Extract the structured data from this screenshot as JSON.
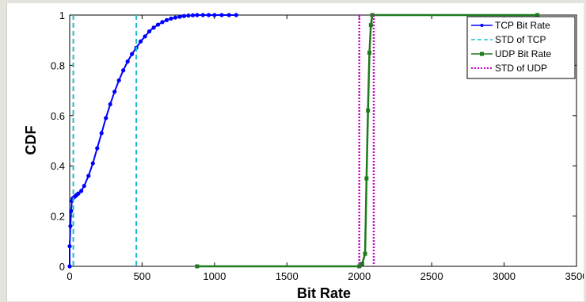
{
  "chart_data": {
    "type": "line",
    "xlabel": "Bit Rate",
    "ylabel": "CDF",
    "xlim": [
      0,
      3500
    ],
    "ylim": [
      0,
      1
    ],
    "x_ticks": [
      "0",
      "500",
      "1000",
      "1500",
      "2000",
      "2500",
      "3000",
      "3500"
    ],
    "y_ticks": [
      "0",
      "0.2",
      "0.4",
      "0.6",
      "0.8",
      "1"
    ],
    "grid": false,
    "legend_position": "top-right",
    "series": [
      {
        "name": "TCP Bit Rate",
        "color": "#0000ff",
        "style": "solid-with-point-markers",
        "x": [
          0,
          0,
          5,
          10,
          15,
          20,
          30,
          40,
          50,
          60,
          80,
          100,
          130,
          160,
          190,
          220,
          250,
          280,
          310,
          340,
          370,
          400,
          430,
          460,
          490,
          520,
          550,
          580,
          610,
          640,
          670,
          700,
          730,
          760,
          790,
          820,
          850,
          880,
          920,
          960,
          1000,
          1050,
          1100,
          1150
        ],
        "y": [
          0,
          0.08,
          0.16,
          0.22,
          0.26,
          0.27,
          0.275,
          0.28,
          0.285,
          0.29,
          0.3,
          0.32,
          0.36,
          0.41,
          0.47,
          0.53,
          0.59,
          0.645,
          0.695,
          0.74,
          0.78,
          0.815,
          0.845,
          0.87,
          0.895,
          0.915,
          0.935,
          0.95,
          0.962,
          0.972,
          0.98,
          0.986,
          0.99,
          0.993,
          0.996,
          0.998,
          0.999,
          1.0,
          1.0,
          1.0,
          1.0,
          1.0,
          1.0,
          1.0
        ]
      },
      {
        "name": "STD of TCP",
        "color": "#18c0c8",
        "style": "dashed-vertical",
        "x_values": [
          25,
          460
        ]
      },
      {
        "name": "UDP Bit Rate",
        "color": "#1e7a1e",
        "style": "solid-with-square-markers",
        "x": [
          880,
          2000,
          2020,
          2040,
          2050,
          2060,
          2070,
          2080,
          2090,
          3230
        ],
        "y": [
          0,
          0,
          0.01,
          0.05,
          0.35,
          0.62,
          0.85,
          0.96,
          1.0,
          1.0
        ]
      },
      {
        "name": "STD of UDP",
        "color": "#cc00cc",
        "style": "dotted-vertical",
        "x_values": [
          2000,
          2100
        ]
      }
    ]
  }
}
